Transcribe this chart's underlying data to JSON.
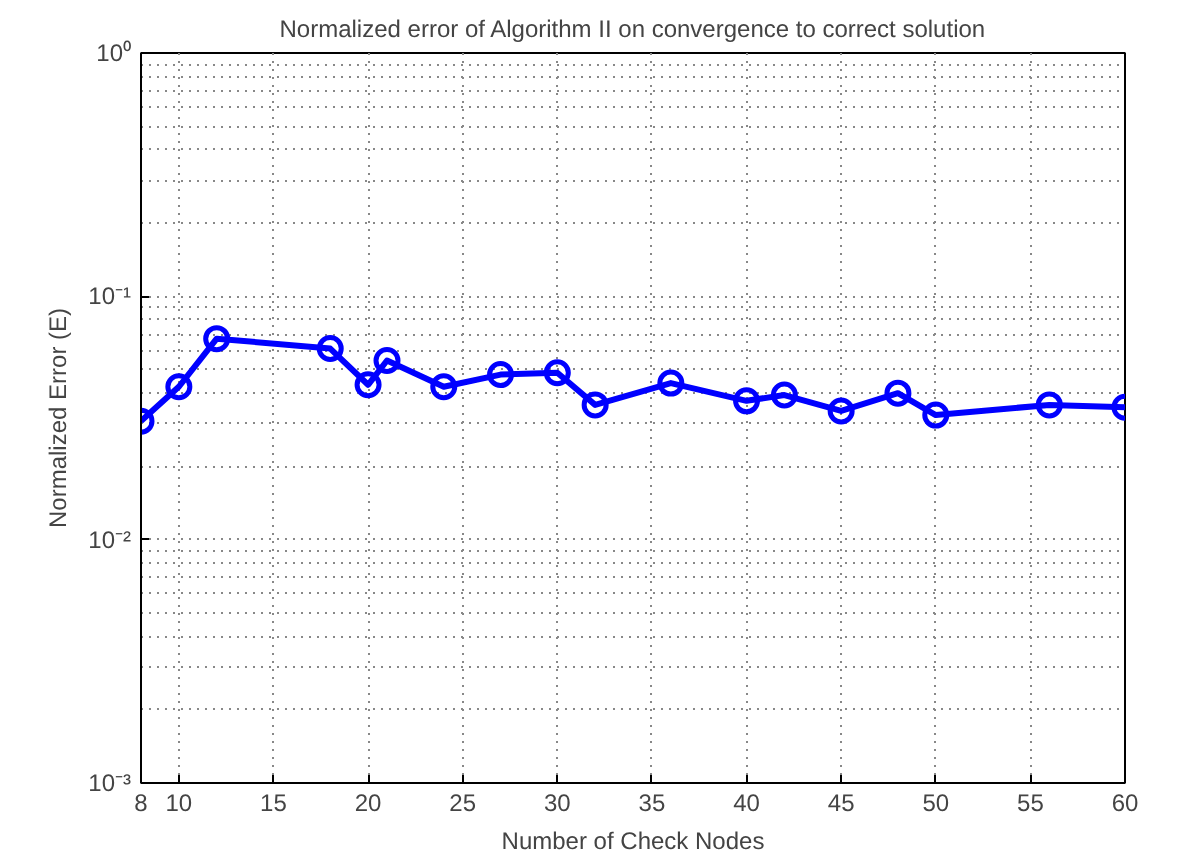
{
  "chart_data": {
    "type": "line",
    "title": "Normalized error of Algorithm II on convergence to correct solution",
    "xlabel": "Number of Check Nodes",
    "ylabel": "Normalized Error (E)",
    "x": [
      8,
      10,
      12,
      18,
      20,
      21,
      24,
      27,
      30,
      32,
      36,
      40,
      42,
      45,
      48,
      50,
      56,
      60
    ],
    "series": [
      {
        "color": "#0000ff",
        "values": [
          0.0307,
          0.0425,
          0.067,
          0.061,
          0.0433,
          0.0545,
          0.0425,
          0.0477,
          0.0485,
          0.0358,
          0.044,
          0.0372,
          0.0393,
          0.0338,
          0.04,
          0.0325,
          0.0358,
          0.035
        ]
      }
    ],
    "xlim": [
      8,
      60
    ],
    "xticks": [
      8,
      10,
      15,
      20,
      25,
      30,
      35,
      40,
      45,
      50,
      55,
      60
    ],
    "ylim": [
      0.001,
      1
    ],
    "yticks": [
      {
        "value": 0.001,
        "label": "10⁻³"
      },
      {
        "value": 0.01,
        "label": "10⁻²"
      },
      {
        "value": 0.1,
        "label": "10⁻¹"
      },
      {
        "value": 1,
        "label": "10⁰"
      }
    ],
    "log": "y",
    "grid": true,
    "marker": "circle",
    "line_style": "solid"
  }
}
